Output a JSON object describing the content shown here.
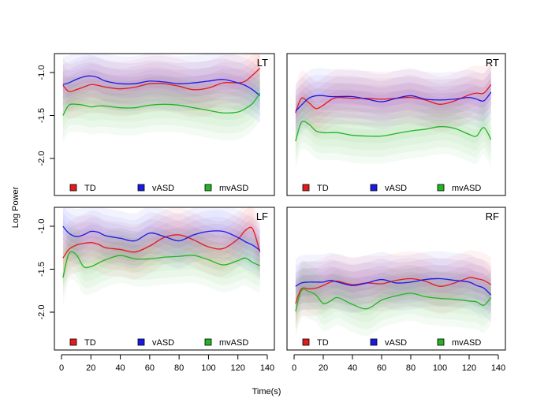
{
  "chart_data": {
    "type": "line",
    "ylabel": "Log Power",
    "xlabel": "Time(s)",
    "xlim": [
      0,
      140
    ],
    "ylim": [
      -2.45,
      -0.75
    ],
    "x_ticks": [
      0,
      20,
      40,
      60,
      80,
      100,
      120,
      140
    ],
    "y_ticks": [
      -1.0,
      -1.5,
      -2.0
    ],
    "legend_position": "bottom",
    "confidence_bands": true,
    "series_colors": {
      "TD": "#e41a1c",
      "vASD": "#1a1ae6",
      "mvASD": "#22b522"
    },
    "legend": [
      "TD",
      "vASD",
      "mvASD"
    ],
    "panels": [
      {
        "label": "LT",
        "x": [
          1,
          5,
          10,
          15,
          20,
          25,
          30,
          40,
          50,
          60,
          70,
          80,
          90,
          100,
          110,
          120,
          125,
          130,
          135
        ],
        "series": [
          {
            "name": "TD",
            "values": [
              -1.15,
              -1.22,
              -1.2,
              -1.17,
              -1.14,
              -1.15,
              -1.17,
              -1.19,
              -1.17,
              -1.13,
              -1.13,
              -1.16,
              -1.2,
              -1.18,
              -1.12,
              -1.12,
              -1.1,
              -1.03,
              -0.95
            ]
          },
          {
            "name": "vASD",
            "values": [
              -1.14,
              -1.12,
              -1.08,
              -1.05,
              -1.04,
              -1.06,
              -1.1,
              -1.13,
              -1.13,
              -1.1,
              -1.11,
              -1.13,
              -1.12,
              -1.1,
              -1.08,
              -1.12,
              -1.15,
              -1.2,
              -1.27
            ]
          },
          {
            "name": "mvASD",
            "values": [
              -1.5,
              -1.38,
              -1.37,
              -1.38,
              -1.4,
              -1.39,
              -1.39,
              -1.41,
              -1.41,
              -1.38,
              -1.37,
              -1.38,
              -1.41,
              -1.44,
              -1.47,
              -1.46,
              -1.42,
              -1.36,
              -1.24
            ]
          }
        ]
      },
      {
        "label": "RT",
        "x": [
          1,
          5,
          10,
          15,
          20,
          25,
          30,
          40,
          50,
          60,
          70,
          80,
          90,
          100,
          110,
          120,
          125,
          130,
          135
        ],
        "series": [
          {
            "name": "TD",
            "values": [
              -1.47,
              -1.3,
              -1.35,
              -1.42,
              -1.38,
              -1.32,
              -1.29,
              -1.3,
              -1.3,
              -1.31,
              -1.3,
              -1.29,
              -1.32,
              -1.37,
              -1.33,
              -1.26,
              -1.24,
              -1.24,
              -1.14
            ]
          },
          {
            "name": "vASD",
            "values": [
              -1.45,
              -1.38,
              -1.3,
              -1.27,
              -1.27,
              -1.28,
              -1.28,
              -1.28,
              -1.31,
              -1.34,
              -1.3,
              -1.27,
              -1.31,
              -1.32,
              -1.31,
              -1.29,
              -1.31,
              -1.33,
              -1.23
            ]
          },
          {
            "name": "mvASD",
            "values": [
              -1.8,
              -1.58,
              -1.6,
              -1.68,
              -1.7,
              -1.7,
              -1.7,
              -1.73,
              -1.74,
              -1.74,
              -1.71,
              -1.68,
              -1.66,
              -1.63,
              -1.65,
              -1.72,
              -1.74,
              -1.64,
              -1.78
            ]
          }
        ]
      },
      {
        "label": "LF",
        "x": [
          1,
          5,
          10,
          15,
          20,
          25,
          30,
          40,
          50,
          60,
          70,
          80,
          90,
          100,
          110,
          120,
          125,
          130,
          135
        ],
        "series": [
          {
            "name": "TD",
            "values": [
              -1.37,
              -1.27,
              -1.22,
              -1.2,
              -1.19,
              -1.21,
              -1.25,
              -1.27,
              -1.3,
              -1.23,
              -1.13,
              -1.1,
              -1.16,
              -1.24,
              -1.26,
              -1.15,
              -1.05,
              -1.03,
              -1.3
            ]
          },
          {
            "name": "vASD",
            "values": [
              -1.0,
              -1.08,
              -1.12,
              -1.1,
              -1.06,
              -1.07,
              -1.11,
              -1.14,
              -1.17,
              -1.08,
              -1.12,
              -1.17,
              -1.1,
              -1.06,
              -1.06,
              -1.13,
              -1.18,
              -1.22,
              -1.28
            ]
          },
          {
            "name": "mvASD",
            "values": [
              -1.6,
              -1.32,
              -1.33,
              -1.47,
              -1.47,
              -1.43,
              -1.39,
              -1.34,
              -1.38,
              -1.38,
              -1.36,
              -1.35,
              -1.34,
              -1.39,
              -1.45,
              -1.4,
              -1.37,
              -1.42,
              -1.46
            ]
          }
        ]
      },
      {
        "label": "RF",
        "x": [
          1,
          5,
          10,
          15,
          20,
          25,
          30,
          40,
          50,
          60,
          70,
          80,
          90,
          100,
          110,
          120,
          125,
          130,
          135
        ],
        "series": [
          {
            "name": "TD",
            "values": [
              -1.9,
              -1.73,
              -1.73,
              -1.72,
              -1.69,
              -1.65,
              -1.64,
              -1.68,
              -1.66,
              -1.67,
              -1.63,
              -1.61,
              -1.64,
              -1.7,
              -1.66,
              -1.6,
              -1.61,
              -1.63,
              -1.68
            ]
          },
          {
            "name": "vASD",
            "values": [
              -1.7,
              -1.66,
              -1.65,
              -1.65,
              -1.65,
              -1.63,
              -1.65,
              -1.69,
              -1.66,
              -1.62,
              -1.66,
              -1.65,
              -1.62,
              -1.61,
              -1.63,
              -1.65,
              -1.69,
              -1.72,
              -1.8
            ]
          },
          {
            "name": "mvASD",
            "values": [
              -1.99,
              -1.75,
              -1.76,
              -1.8,
              -1.9,
              -1.87,
              -1.83,
              -1.91,
              -1.96,
              -1.86,
              -1.81,
              -1.78,
              -1.82,
              -1.84,
              -1.85,
              -1.87,
              -1.88,
              -1.92,
              -1.83
            ]
          }
        ]
      }
    ]
  }
}
